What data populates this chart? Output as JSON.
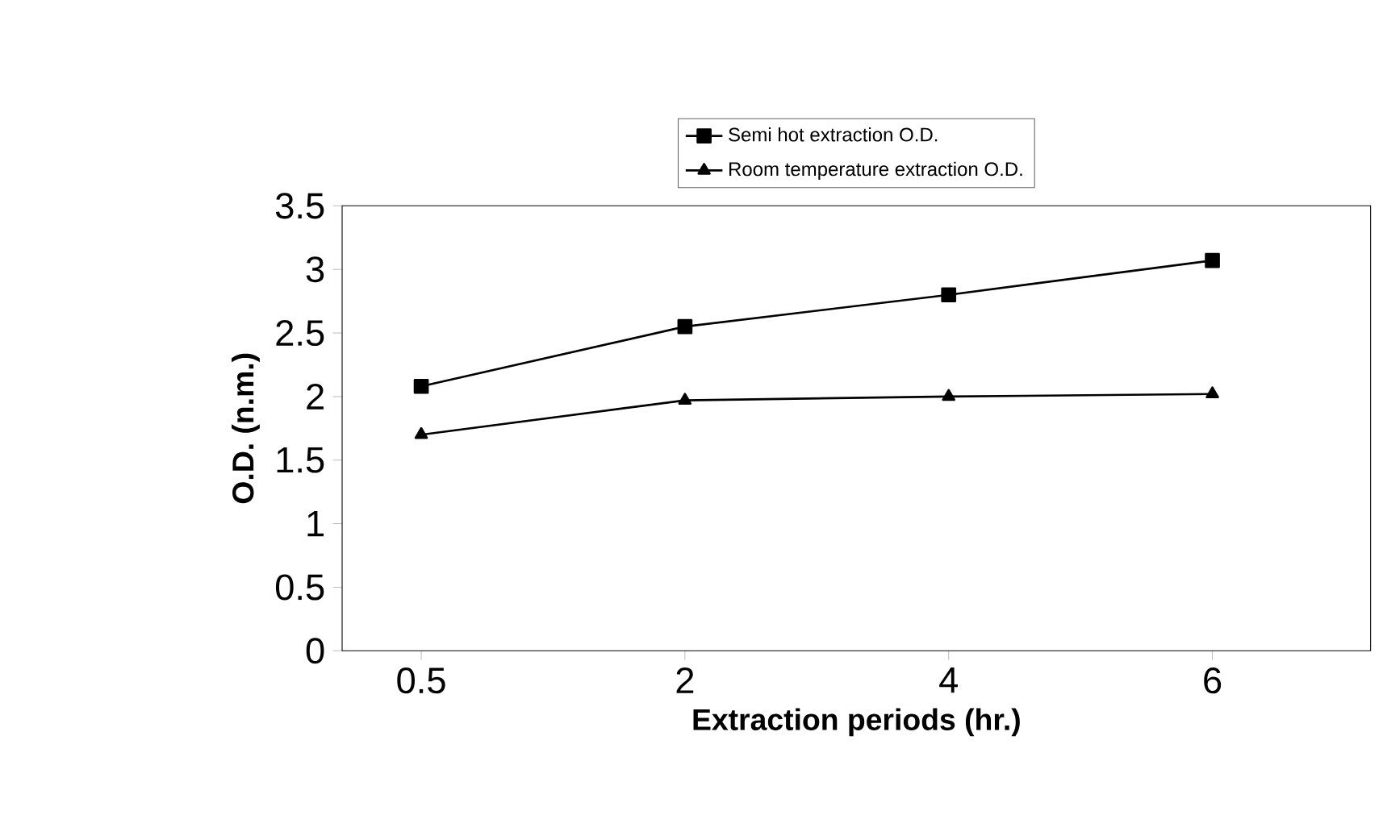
{
  "chart_data": {
    "type": "line",
    "xlabel": "Extraction periods (hr.)",
    "ylabel": "O.D. (n.m.)",
    "categories": [
      "0.5",
      "2",
      "4",
      "6"
    ],
    "series": [
      {
        "name": "Semi hot extraction O.D.",
        "color": "#000000",
        "marker": "square",
        "values": [
          2.08,
          2.55,
          2.8,
          3.07
        ]
      },
      {
        "name": "Room temperature extraction O.D.",
        "color": "#000000",
        "marker": "triangle",
        "values": [
          1.7,
          1.97,
          2.0,
          2.02
        ]
      }
    ],
    "ylim": [
      0,
      3.5
    ],
    "yticks": [
      0,
      0.5,
      1,
      1.5,
      2,
      2.5,
      3,
      3.5
    ],
    "grid": false,
    "legend": "top",
    "line_style": "solid"
  }
}
